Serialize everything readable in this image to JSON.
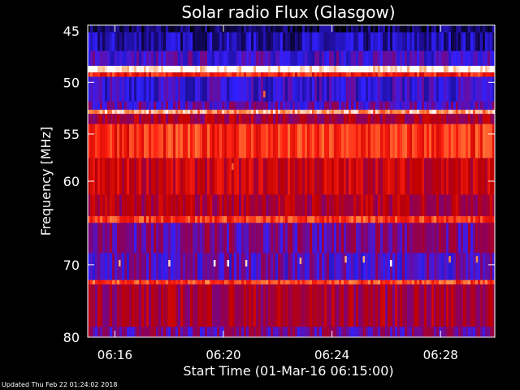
{
  "chart_data": {
    "type": "heatmap",
    "title": "Solar radio Flux (Glasgow)",
    "xlabel": "Start Time (01-Mar-16 06:15:00)",
    "ylabel": "Frequency [MHz]",
    "x_unit": "time (HH:MM)",
    "xlim": [
      "06:15:00",
      "06:30:00"
    ],
    "ylim": [
      45,
      80
    ],
    "y_reversed": true,
    "x_ticks": [
      "06:16",
      "06:20",
      "06:24",
      "06:28"
    ],
    "y_ticks": [
      45,
      50,
      55,
      60,
      70,
      80
    ],
    "colormap": [
      "#000000",
      "#1a0a80",
      "#3020ff",
      "#8a0060",
      "#c00000",
      "#ff2010",
      "#ff8a40",
      "#ffffff"
    ],
    "bands": [
      {
        "from": 45.0,
        "to": 45.6,
        "level": 0.1
      },
      {
        "from": 45.6,
        "to": 47.2,
        "level": 0.18
      },
      {
        "from": 47.2,
        "to": 48.5,
        "level": 0.3
      },
      {
        "from": 48.5,
        "to": 49.1,
        "level": 1.0
      },
      {
        "from": 49.1,
        "to": 49.5,
        "level": 0.7
      },
      {
        "from": 49.5,
        "to": 51.8,
        "level": 0.28
      },
      {
        "from": 51.8,
        "to": 52.6,
        "level": 0.35
      },
      {
        "from": 52.6,
        "to": 53.0,
        "level": 0.88
      },
      {
        "from": 53.0,
        "to": 54.0,
        "level": 0.5
      },
      {
        "from": 54.0,
        "to": 57.5,
        "level": 0.72
      },
      {
        "from": 57.5,
        "to": 61.5,
        "level": 0.58
      },
      {
        "from": 61.5,
        "to": 64.0,
        "level": 0.52
      },
      {
        "from": 64.0,
        "to": 64.8,
        "level": 0.74
      },
      {
        "from": 64.8,
        "to": 68.5,
        "level": 0.4
      },
      {
        "from": 68.5,
        "to": 72.0,
        "level": 0.34
      },
      {
        "from": 72.0,
        "to": 72.6,
        "level": 0.76
      },
      {
        "from": 72.6,
        "to": 78.5,
        "level": 0.5
      },
      {
        "from": 78.5,
        "to": 80.0,
        "level": 0.4
      }
    ],
    "bursts": [
      {
        "time": "06:16:10",
        "freq": 69.8,
        "level": 0.9
      },
      {
        "time": "06:18:00",
        "freq": 69.8,
        "level": 0.95
      },
      {
        "time": "06:19:40",
        "freq": 69.8,
        "level": 1.0
      },
      {
        "time": "06:20:10",
        "freq": 69.8,
        "level": 1.0
      },
      {
        "time": "06:20:50",
        "freq": 69.8,
        "level": 0.95
      },
      {
        "time": "06:22:50",
        "freq": 69.5,
        "level": 0.9
      },
      {
        "time": "06:24:30",
        "freq": 69.3,
        "level": 0.9
      },
      {
        "time": "06:25:10",
        "freq": 69.3,
        "level": 0.9
      },
      {
        "time": "06:26:10",
        "freq": 69.8,
        "level": 1.0
      },
      {
        "time": "06:28:20",
        "freq": 69.3,
        "level": 0.85
      },
      {
        "time": "06:29:20",
        "freq": 69.3,
        "level": 0.85
      },
      {
        "time": "06:21:30",
        "freq": 51.1,
        "level": 0.8
      },
      {
        "time": "06:20:20",
        "freq": 58.4,
        "level": 0.8
      }
    ]
  },
  "footer": {
    "updated": "Updated Thu Feb 22 01:24:02 2018"
  }
}
